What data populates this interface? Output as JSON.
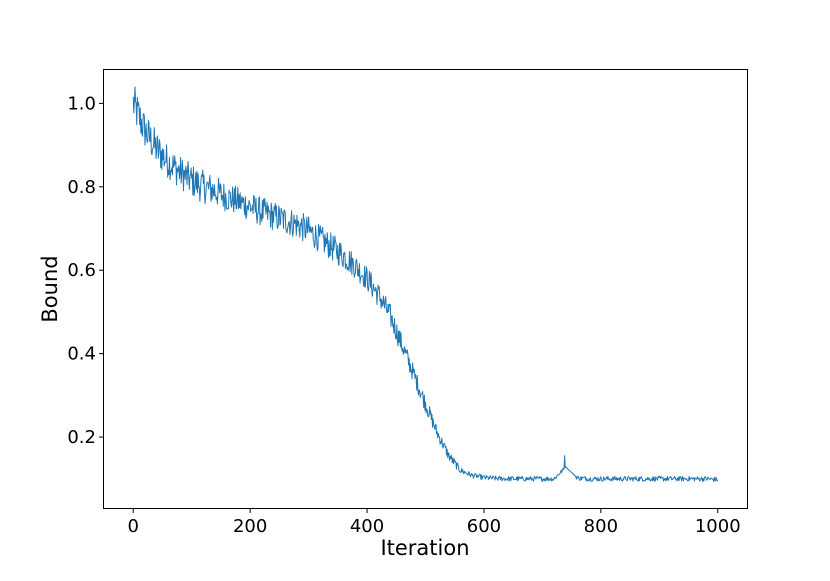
{
  "chart_data": {
    "type": "line",
    "title": "",
    "xlabel": "Iteration",
    "ylabel": "Bound",
    "xlim": [
      -50,
      1050
    ],
    "ylim": [
      0.03,
      1.08
    ],
    "xticks": [
      0,
      200,
      400,
      600,
      800,
      1000
    ],
    "xtick_labels": [
      "0",
      "200",
      "400",
      "600",
      "800",
      "1000"
    ],
    "yticks": [
      0.2,
      0.4,
      0.6,
      0.8,
      1.0
    ],
    "ytick_labels": [
      "0.2",
      "0.4",
      "0.6",
      "0.8",
      "1.0"
    ],
    "grid": false,
    "legend": "none",
    "series": [
      {
        "color": "#1f77b4",
        "x": [
          0,
          20,
          40,
          60,
          80,
          100,
          120,
          140,
          160,
          180,
          200,
          220,
          240,
          260,
          280,
          300,
          320,
          340,
          360,
          380,
          400,
          420,
          440,
          460,
          480,
          500,
          520,
          540,
          560,
          580,
          600,
          620,
          640,
          660,
          680,
          700,
          720,
          740,
          760,
          780,
          800,
          820,
          840,
          860,
          880,
          900,
          920,
          940,
          960,
          980,
          1000
        ],
        "y": [
          1.0,
          0.935,
          0.89,
          0.86,
          0.835,
          0.815,
          0.8,
          0.79,
          0.775,
          0.765,
          0.752,
          0.74,
          0.73,
          0.72,
          0.71,
          0.695,
          0.675,
          0.655,
          0.635,
          0.61,
          0.58,
          0.54,
          0.49,
          0.42,
          0.35,
          0.28,
          0.21,
          0.155,
          0.12,
          0.108,
          0.103,
          0.101,
          0.1,
          0.1,
          0.1,
          0.1,
          0.1,
          0.128,
          0.102,
          0.1,
          0.1,
          0.1,
          0.1,
          0.1,
          0.1,
          0.1,
          0.1,
          0.1,
          0.1,
          0.1,
          0.098
        ],
        "noise": [
          0.05,
          0.045,
          0.045,
          0.04,
          0.04,
          0.04,
          0.04,
          0.038,
          0.035,
          0.035,
          0.035,
          0.035,
          0.035,
          0.035,
          0.035,
          0.035,
          0.033,
          0.033,
          0.033,
          0.03,
          0.03,
          0.03,
          0.028,
          0.025,
          0.022,
          0.02,
          0.015,
          0.012,
          0.008,
          0.006,
          0.006,
          0.006,
          0.006,
          0.006,
          0.006,
          0.006,
          0.006,
          0.004,
          0.006,
          0.006,
          0.006,
          0.006,
          0.006,
          0.006,
          0.006,
          0.006,
          0.006,
          0.006,
          0.006,
          0.006,
          0.006
        ]
      }
    ]
  }
}
